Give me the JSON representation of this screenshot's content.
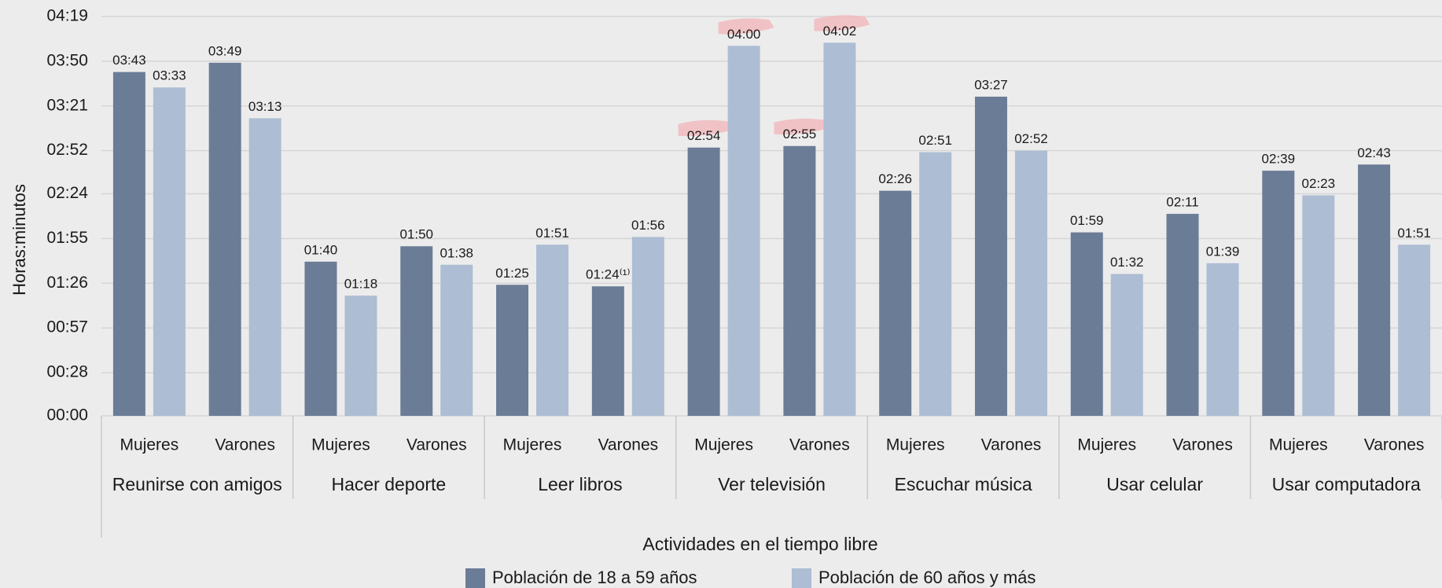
{
  "chart_data": {
    "type": "bar",
    "y_label": "Horas:minutos",
    "x_label": "Actividades en el tiempo libre",
    "groups": [
      "Reunirse con amigos",
      "Hacer deporte",
      "Leer libros",
      "Ver televisión",
      "Escuchar música",
      "Usar celular",
      "Usar computadora"
    ],
    "categories": [
      "Mujeres",
      "Varones",
      "Mujeres",
      "Varones",
      "Mujeres",
      "Varones",
      "Mujeres",
      "Varones",
      "Mujeres",
      "Varones",
      "Mujeres",
      "Varones",
      "Mujeres",
      "Varones"
    ],
    "series": [
      {
        "name": "Población de 18 a 59 años",
        "color": "#6b7c96",
        "values": [
          223,
          229,
          100,
          110,
          85,
          84,
          174,
          175,
          146,
          207,
          119,
          131,
          159,
          163
        ],
        "value_labels": [
          "03:43",
          "03:49",
          "01:40",
          "01:50",
          "01:25",
          "01:24⁽¹⁾",
          "02:54",
          "02:55",
          "02:26",
          "03:27",
          "01:59",
          "02:11",
          "02:39",
          "02:43"
        ]
      },
      {
        "name": "Población de 60 años y más",
        "color": "#adbdd3",
        "values": [
          213,
          193,
          78,
          98,
          111,
          116,
          240,
          242,
          171,
          172,
          92,
          99,
          143,
          111
        ],
        "value_labels": [
          "03:33",
          "03:13",
          "01:18",
          "01:38",
          "01:51",
          "01:56",
          "04:00",
          "04:02",
          "02:51",
          "02:52",
          "01:32",
          "01:39",
          "02:23",
          "01:51"
        ]
      }
    ],
    "ylim": [
      0,
      259
    ],
    "yticks": [
      {
        "value": 0,
        "label": "00:00"
      },
      {
        "value": 28,
        "label": "00:28"
      },
      {
        "value": 57,
        "label": "00:57"
      },
      {
        "value": 86,
        "label": "01:26"
      },
      {
        "value": 115,
        "label": "01:55"
      },
      {
        "value": 144,
        "label": "02:24"
      },
      {
        "value": 172,
        "label": "02:52"
      },
      {
        "value": 201,
        "label": "03:21"
      },
      {
        "value": 230,
        "label": "03:50"
      },
      {
        "value": 259,
        "label": "04:19"
      }
    ],
    "grid": true
  }
}
